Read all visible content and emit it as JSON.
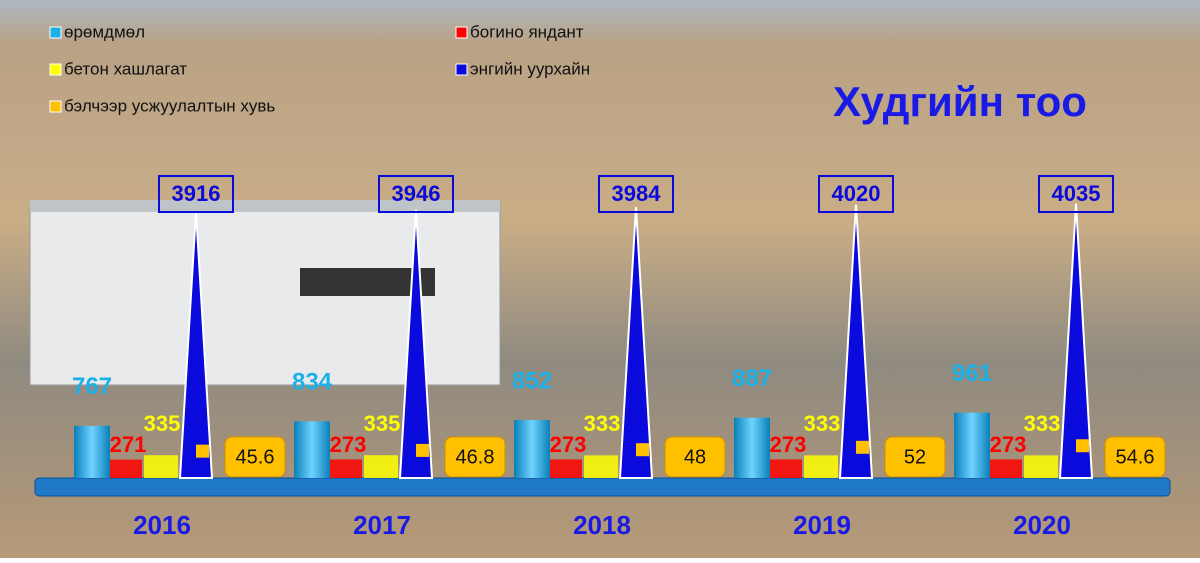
{
  "chart_data": {
    "type": "infographic-bar",
    "title": "Худгийн тоо",
    "categories": [
      "2016",
      "2017",
      "2018",
      "2019",
      "2020"
    ],
    "series": [
      {
        "name": "өрөмдмөл",
        "color": "#1ab0e8",
        "values": [
          767,
          834,
          852,
          887,
          961
        ]
      },
      {
        "name": "богино яндант",
        "color": "#ff0000",
        "values": [
          271,
          273,
          273,
          273,
          273
        ]
      },
      {
        "name": "бетон хашлагат",
        "color": "#ffff00",
        "values": [
          335,
          335,
          333,
          333,
          333
        ]
      },
      {
        "name": "энгийн уурхайн",
        "color": "#0a0adc",
        "values": [
          3916,
          3946,
          3984,
          4020,
          4035
        ]
      },
      {
        "name": "бэлчээр усжуулалтын хувь",
        "color": "#ffc000",
        "values": [
          45.6,
          46.8,
          48,
          52,
          54.6
        ]
      }
    ]
  }
}
